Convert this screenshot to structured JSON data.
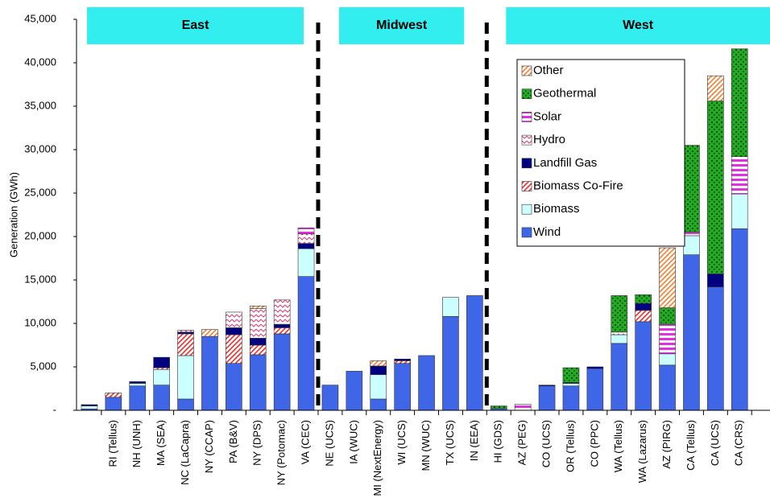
{
  "chart_data": {
    "type": "stacked_bar",
    "y_label": "Generation (GWh)",
    "regions": [
      "East",
      "Midwest",
      "West"
    ],
    "categories": [
      null,
      "RI (Tellus)",
      "NH (UNH)",
      "MA (SEA)",
      "NC (LaCapra)",
      "NY (CCAP)",
      "PA (B&V)",
      "NY (DPS)",
      "NY (Potomac)",
      "VA (CEC)",
      "NE (UCS)",
      "IA (WUC)",
      "MI (NextEnergy)",
      "WI (UCS)",
      "MN (WUC)",
      "TX (UCS)",
      "IN (EEA)",
      "HI (GDS)",
      "AZ (PEG)",
      "CO (UCS)",
      "OR (Tellus)",
      "CO (PPC)",
      "WA (Tellus)",
      "WA (Lazarus)",
      "AZ (PIRG)",
      "CA (Tellus)",
      "CA (UCS)",
      "CA (CRS)"
    ],
    "series": [
      {
        "name": "Wind",
        "color": "#3e66e6",
        "values": [
          150,
          1500,
          2800,
          2900,
          1300,
          8500,
          5400,
          6400,
          8800,
          15400,
          2900,
          4500,
          1300,
          5400,
          6300,
          10800,
          13200,
          200,
          0,
          2800,
          2800,
          4800,
          7700,
          10200,
          5200,
          17900,
          14200,
          20900
        ]
      },
      {
        "name": "Biomass",
        "color": "#ccffff",
        "values": [
          350,
          0,
          300,
          1800,
          5000,
          0,
          0,
          0,
          0,
          3200,
          0,
          0,
          2800,
          0,
          0,
          2200,
          0,
          0,
          0,
          0,
          300,
          0,
          1000,
          0,
          1300,
          2200,
          0,
          4000
        ]
      },
      {
        "name": "Biomass Co-Fire",
        "color": "#e83030",
        "values": [
          0,
          500,
          0,
          200,
          2500,
          0,
          3300,
          1100,
          700,
          0,
          0,
          0,
          0,
          300,
          0,
          0,
          0,
          0,
          0,
          0,
          0,
          0,
          0,
          1300,
          0,
          0,
          0,
          0
        ]
      },
      {
        "name": "Landfill Gas",
        "color": "#000080",
        "values": [
          150,
          0,
          200,
          1200,
          200,
          0,
          800,
          800,
          400,
          600,
          0,
          0,
          1000,
          200,
          0,
          0,
          0,
          0,
          0,
          100,
          100,
          200,
          0,
          800,
          0,
          0,
          1500,
          0
        ]
      },
      {
        "name": "Hydro",
        "color": "#d0407a",
        "values": [
          0,
          0,
          0,
          0,
          200,
          0,
          1800,
          3400,
          2800,
          1100,
          0,
          0,
          0,
          0,
          0,
          0,
          0,
          0,
          0,
          0,
          0,
          0,
          300,
          0,
          0,
          0,
          0,
          0
        ]
      },
      {
        "name": "Solar",
        "color": "#e030e0",
        "values": [
          0,
          0,
          0,
          0,
          0,
          0,
          0,
          0,
          0,
          700,
          0,
          0,
          0,
          0,
          0,
          0,
          0,
          0,
          700,
          0,
          0,
          0,
          0,
          0,
          3400,
          400,
          0,
          4300
        ]
      },
      {
        "name": "Geothermal",
        "color": "#1a8a1a",
        "values": [
          0,
          0,
          0,
          0,
          0,
          0,
          0,
          0,
          0,
          0,
          0,
          0,
          0,
          0,
          0,
          0,
          0,
          300,
          0,
          0,
          1700,
          0,
          4200,
          1000,
          1900,
          10000,
          19900,
          12400
        ]
      },
      {
        "name": "Other",
        "color": "#f08030",
        "values": [
          0,
          0,
          0,
          0,
          0,
          800,
          0,
          300,
          0,
          0,
          0,
          0,
          600,
          0,
          0,
          0,
          0,
          0,
          0,
          0,
          0,
          0,
          0,
          0,
          6900,
          0,
          2900,
          0
        ]
      }
    ],
    "ylim": [
      0,
      45000
    ],
    "yticks": [
      {
        "value": 0,
        "label": "-"
      },
      {
        "value": 5000,
        "label": "5,000"
      },
      {
        "value": 10000,
        "label": "10,000"
      },
      {
        "value": 15000,
        "label": "15,000"
      },
      {
        "value": 20000,
        "label": "20,000"
      },
      {
        "value": 25000,
        "label": "25,000"
      },
      {
        "value": 30000,
        "label": "30,000"
      },
      {
        "value": 35000,
        "label": "35,000"
      },
      {
        "value": 40000,
        "label": "40,000"
      },
      {
        "value": 45000,
        "label": "45,000"
      }
    ]
  }
}
